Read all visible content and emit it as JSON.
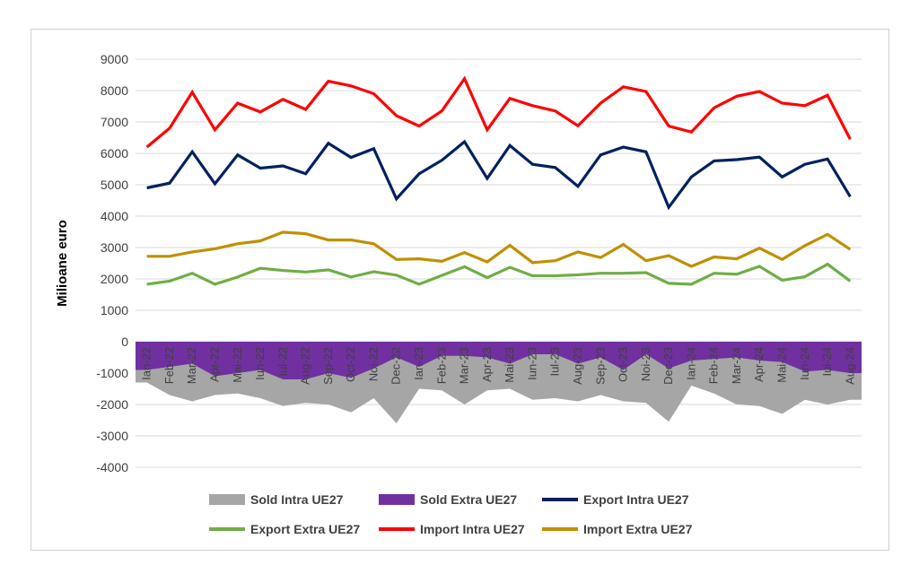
{
  "chart_data": {
    "type": "line",
    "ylabel": "Milioane euro",
    "ylim": [
      -4000,
      9000
    ],
    "yticks": [
      9000,
      8000,
      7000,
      6000,
      5000,
      4000,
      3000,
      2000,
      1000,
      0,
      -1000,
      -2000,
      -3000,
      -4000
    ],
    "categories": [
      "Ian-22",
      "Feb-22",
      "Mar-22",
      "Apr-22",
      "Mai-22",
      "Iun-22",
      "Iul-22",
      "Aug-22",
      "Sep-22",
      "Oct-22",
      "Noi-22",
      "Dec-22",
      "Ian-23",
      "Feb-23",
      "Mar-23",
      "Apr-23",
      "Mai-23",
      "Iun-23",
      "Iul-23",
      "Aug-23",
      "Sep-23",
      "Oct-23",
      "Noi-23",
      "Dec-23",
      "Ian-24",
      "Feb-24",
      "Mar-24",
      "Apr-24",
      "Mai-24",
      "Iun-24",
      "Iul-24",
      "Aug-24"
    ],
    "series": [
      {
        "name": "Sold Intra UE27",
        "kind": "area",
        "color": "#a6a6a6",
        "values": [
          -1300,
          -1700,
          -1900,
          -1700,
          -1650,
          -1800,
          -2050,
          -1950,
          -2000,
          -2250,
          -1800,
          -2600,
          -1500,
          -1550,
          -2000,
          -1550,
          -1500,
          -1850,
          -1800,
          -1900,
          -1700,
          -1900,
          -1950,
          -2550,
          -1400,
          -1650,
          -2000,
          -2050,
          -2300,
          -1850,
          -2000,
          -1850
        ]
      },
      {
        "name": "Sold Extra UE27",
        "kind": "area",
        "color": "#7030a0",
        "values": [
          -900,
          -800,
          -700,
          -1100,
          -1000,
          -900,
          -1200,
          -1200,
          -1000,
          -1150,
          -850,
          -500,
          -800,
          -450,
          -450,
          -500,
          -700,
          -400,
          -400,
          -700,
          -500,
          -900,
          -400,
          -850,
          -600,
          -550,
          -500,
          -600,
          -650,
          -950,
          -900,
          -1000
        ]
      },
      {
        "name": "Export Intra UE27",
        "kind": "line",
        "color": "#002060",
        "values": [
          4900,
          5050,
          6050,
          5030,
          5950,
          5530,
          5600,
          5350,
          6320,
          5870,
          6150,
          4550,
          5350,
          5780,
          6370,
          5200,
          6250,
          5650,
          5550,
          4950,
          5950,
          6200,
          6050,
          4280,
          5250,
          5760,
          5800,
          5880,
          5250,
          5650,
          5820,
          4620
        ]
      },
      {
        "name": "Export Extra UE27",
        "kind": "line",
        "color": "#70ad47",
        "values": [
          1830,
          1930,
          2180,
          1830,
          2060,
          2340,
          2270,
          2220,
          2290,
          2060,
          2230,
          2120,
          1830,
          2110,
          2390,
          2040,
          2370,
          2100,
          2100,
          2130,
          2180,
          2180,
          2200,
          1860,
          1830,
          2180,
          2150,
          2400,
          1960,
          2070,
          2470,
          1930
        ]
      },
      {
        "name": "Import Intra UE27",
        "kind": "line",
        "color": "#ff0000",
        "values": [
          6200,
          6800,
          7950,
          6750,
          7600,
          7320,
          7720,
          7400,
          8300,
          8150,
          7900,
          7200,
          6870,
          7350,
          8380,
          6750,
          7750,
          7520,
          7350,
          6880,
          7600,
          8120,
          7970,
          6870,
          6680,
          7450,
          7820,
          7970,
          7600,
          7520,
          7850,
          6450
        ]
      },
      {
        "name": "Import Extra UE27",
        "kind": "line",
        "color": "#bf9000",
        "values": [
          2720,
          2720,
          2860,
          2960,
          3120,
          3210,
          3490,
          3440,
          3240,
          3240,
          3120,
          2620,
          2640,
          2560,
          2840,
          2540,
          3070,
          2520,
          2580,
          2860,
          2680,
          3100,
          2580,
          2740,
          2400,
          2700,
          2640,
          2980,
          2620,
          3060,
          3420,
          2940
        ]
      }
    ],
    "legend": {
      "position": "bottom"
    },
    "grid": true
  }
}
